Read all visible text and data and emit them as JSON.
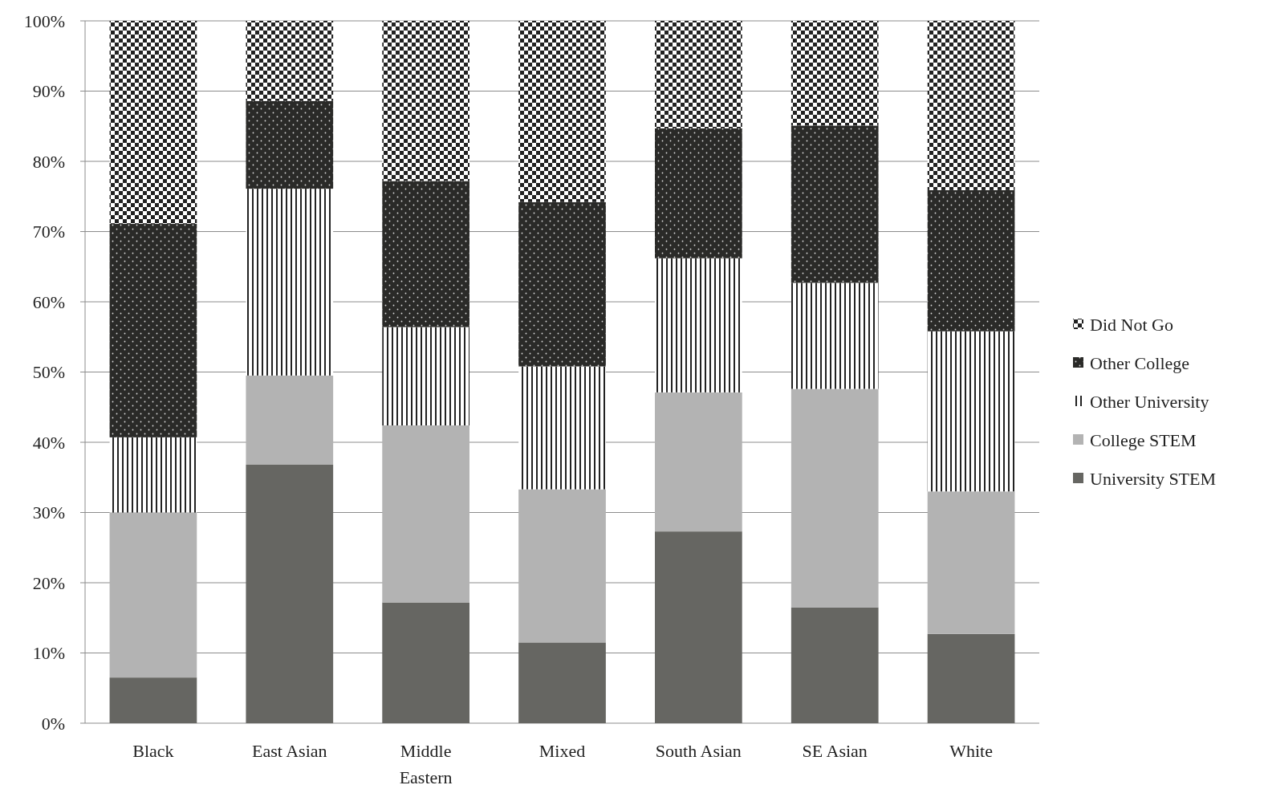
{
  "chart_data": {
    "type": "bar",
    "stacked": true,
    "categories": [
      "Black",
      "East Asian",
      "Middle Eastern",
      "Mixed",
      "South Asian",
      "SE Asian",
      "White"
    ],
    "series": [
      {
        "name": "University STEM",
        "color": "#666662",
        "values": [
          6.5,
          36.8,
          17.2,
          11.5,
          27.3,
          16.5,
          12.7
        ]
      },
      {
        "name": "College STEM",
        "color": "#b3b3b3",
        "values": [
          23.5,
          12.7,
          25.2,
          21.8,
          19.8,
          31.1,
          20.3
        ]
      },
      {
        "name": "Other University",
        "color": "#222222",
        "values": [
          10.7,
          26.6,
          14.0,
          17.5,
          19.1,
          15.1,
          22.8
        ]
      },
      {
        "name": "Other College",
        "color": "#2a2a28",
        "values": [
          30.4,
          12.5,
          20.8,
          23.4,
          18.5,
          22.4,
          20.1
        ]
      },
      {
        "name": "Did Not Go",
        "color": "#222222",
        "values": [
          28.9,
          11.4,
          22.8,
          25.8,
          15.3,
          14.9,
          24.1
        ]
      }
    ],
    "ylim": [
      0,
      100
    ],
    "yticks": [
      {
        "value": 0,
        "label": "0%"
      },
      {
        "value": 10,
        "label": "10%"
      },
      {
        "value": 20,
        "label": "20%"
      },
      {
        "value": 30,
        "label": "30%"
      },
      {
        "value": 40,
        "label": "40%"
      },
      {
        "value": 50,
        "label": "50%"
      },
      {
        "value": 60,
        "label": "60%"
      },
      {
        "value": 70,
        "label": "70%"
      },
      {
        "value": 80,
        "label": "80%"
      },
      {
        "value": 90,
        "label": "90%"
      },
      {
        "value": 100,
        "label": "100%"
      }
    ],
    "grid": "y",
    "legend": "right"
  }
}
